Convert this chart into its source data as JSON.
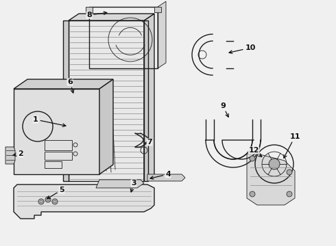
{
  "background_color": "#f0f0f0",
  "line_color": "#1a1a1a",
  "label_color": "#111111",
  "fig_width": 4.9,
  "fig_height": 3.6,
  "dpi": 100,
  "hatch_color": "#555555"
}
